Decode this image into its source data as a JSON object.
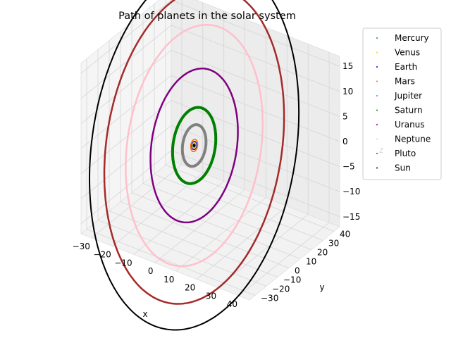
{
  "chart_data": {
    "type": "scatter",
    "projection": "3d",
    "title": "Path of planets in the solar system",
    "xlabel": "x",
    "ylabel": "y",
    "zlabel": "z",
    "xlim": [
      -35,
      45
    ],
    "ylim": [
      -35,
      45
    ],
    "zlim": [
      -17,
      17
    ],
    "xticks": [
      -30,
      -20,
      -10,
      0,
      10,
      20,
      30,
      40
    ],
    "yticks": [
      -30,
      -20,
      -10,
      0,
      10,
      20,
      30,
      40
    ],
    "zticks": [
      -15,
      -10,
      -5,
      0,
      5,
      10,
      15
    ],
    "grid": true,
    "legend_position": "upper-right",
    "series": [
      {
        "name": "Mercury",
        "color": "#1f77b4",
        "orbit_radius": 0.39
      },
      {
        "name": "Venus",
        "color": "#ffd700",
        "orbit_radius": 0.72
      },
      {
        "name": "Earth",
        "color": "#0000ff",
        "orbit_radius": 1.0
      },
      {
        "name": "Mars",
        "color": "#ff6600",
        "orbit_radius": 1.52
      },
      {
        "name": "Jupiter",
        "color": "#808080",
        "orbit_radius": 5.2
      },
      {
        "name": "Saturn",
        "color": "#008000",
        "orbit_radius": 9.5
      },
      {
        "name": "Uranus",
        "color": "#800080",
        "orbit_radius": 19.2
      },
      {
        "name": "Neptune",
        "color": "#ffc0cb",
        "orbit_radius": 30.1
      },
      {
        "name": "Pluto",
        "color": "#a52a2a",
        "orbit_radius": 39.5
      },
      {
        "name": "Sun",
        "color": "#000000",
        "orbit_radius": 0
      }
    ],
    "outer_ring_color": "#000000"
  }
}
